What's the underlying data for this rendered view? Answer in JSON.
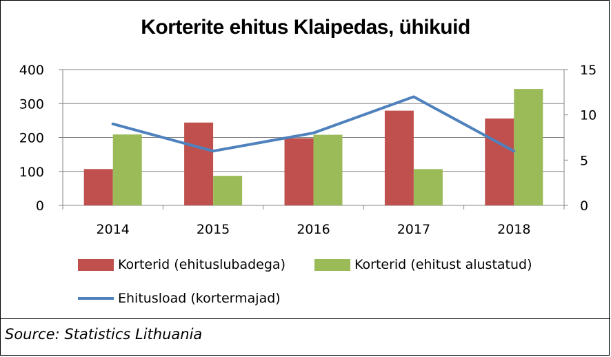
{
  "chart_data": {
    "type": "bar",
    "title": "Korterite ehitus Klaipedas, ühikuid",
    "categories": [
      "2014",
      "2015",
      "2016",
      "2017",
      "2018"
    ],
    "series": [
      {
        "name": "Korterid (ehituslubadega)",
        "type": "bar",
        "axis": "left",
        "color": "#c0504d",
        "values": [
          107,
          244,
          198,
          279,
          256
        ]
      },
      {
        "name": "Korterid (ehitust alustatud)",
        "type": "bar",
        "axis": "left",
        "color": "#9bbb59",
        "values": [
          209,
          87,
          208,
          107,
          343
        ]
      },
      {
        "name": "Ehitusload (kortermajad)",
        "type": "line",
        "axis": "right",
        "color": "#4f81bd",
        "values": [
          9,
          6,
          8,
          12,
          6
        ]
      }
    ],
    "ylim": [
      0,
      400
    ],
    "yticks": [
      "0",
      "100",
      "200",
      "300",
      "400"
    ],
    "y2lim": [
      0,
      15
    ],
    "y2ticks": [
      "0",
      "5",
      "10",
      "15"
    ],
    "grid": true,
    "legend_position": "bottom"
  },
  "source": "Source: Statistics Lithuania"
}
